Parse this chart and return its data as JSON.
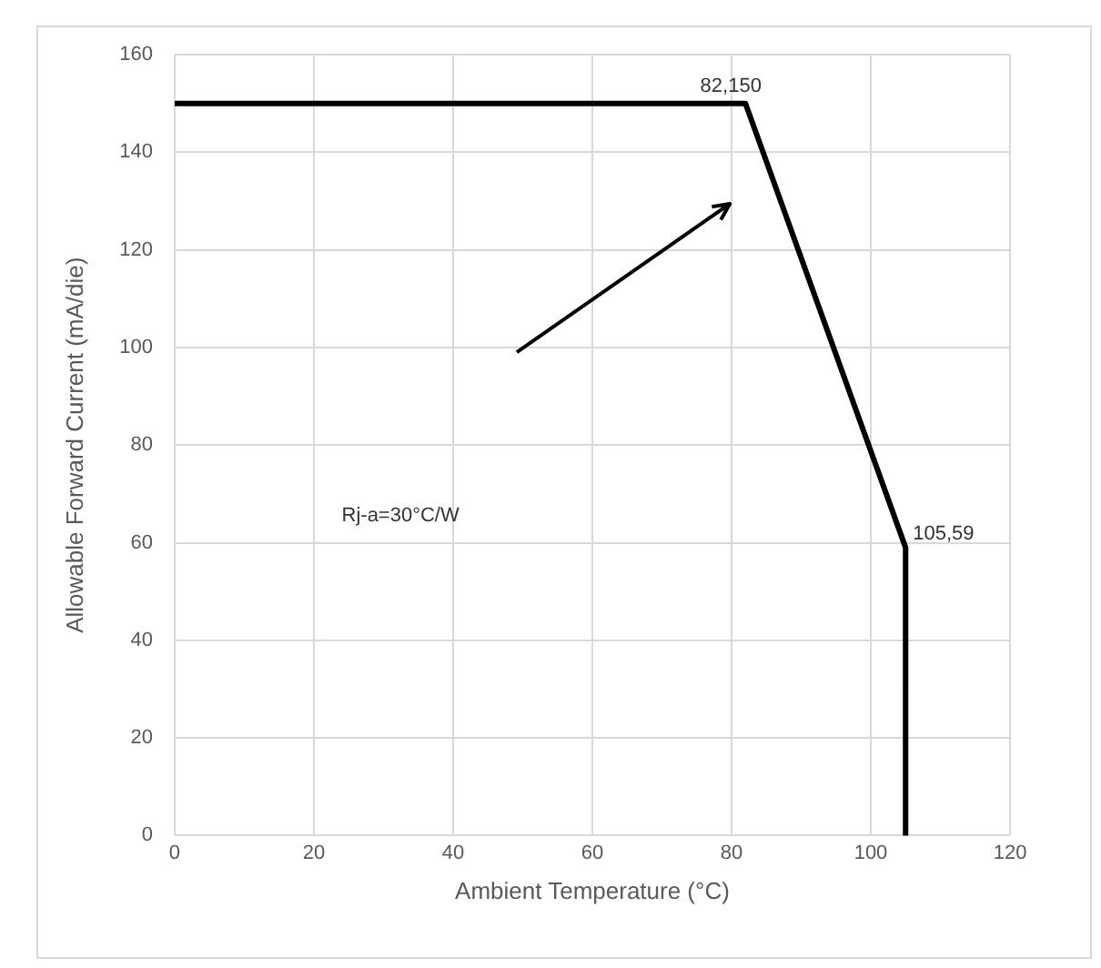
{
  "chart_data": {
    "type": "line",
    "xlabel": "Ambient Temperature (°C)",
    "ylabel": "Allowable Forward Current (mA/die)",
    "x": [
      0,
      82,
      105,
      105
    ],
    "series": [
      {
        "color": "#000000",
        "values": [
          150,
          150,
          59,
          0
        ]
      }
    ],
    "xlim": [
      0,
      120
    ],
    "xticks": [
      0,
      20,
      40,
      60,
      80,
      100,
      120
    ],
    "ylim": [
      0,
      160
    ],
    "yticks": [
      0,
      20,
      40,
      60,
      80,
      100,
      120,
      140,
      160
    ],
    "grid": true,
    "legend": false,
    "marker": "none",
    "line_style": "solid",
    "annotations": [
      {
        "text": "82,150",
        "x": 82,
        "y": 150
      },
      {
        "text": "105,59",
        "x": 105,
        "y": 59
      },
      "Rj-a=30°C/W"
    ]
  }
}
